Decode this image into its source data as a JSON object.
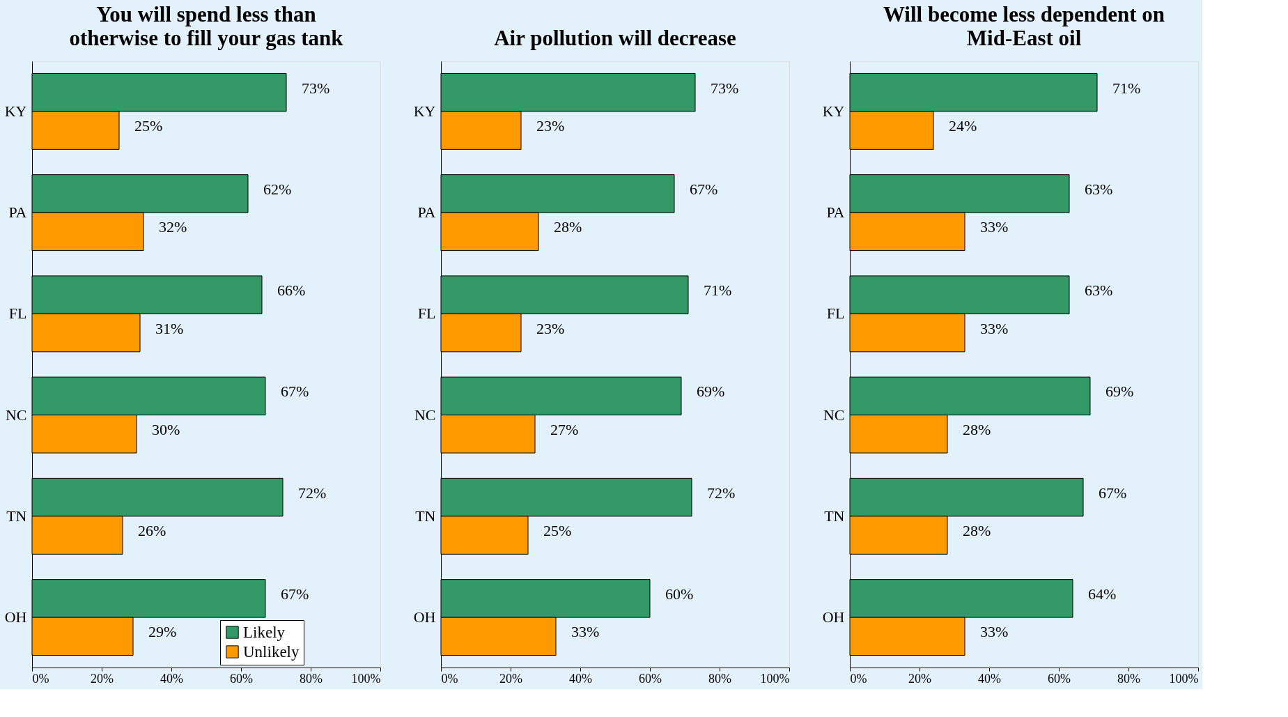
{
  "chart_data": [
    {
      "type": "bar",
      "orientation": "horizontal",
      "title": "You will spend less than otherwise to fill your gas tank",
      "categories": [
        "KY",
        "PA",
        "FL",
        "NC",
        "TN",
        "OH"
      ],
      "series": [
        {
          "name": "Likely",
          "color": "#339966",
          "values": [
            73,
            62,
            66,
            67,
            72,
            67
          ],
          "value_labels": [
            "73%",
            "62%",
            "66%",
            "67%",
            "72%",
            "67%"
          ]
        },
        {
          "name": "Unlikely",
          "color": "#ff9900",
          "values": [
            25,
            32,
            31,
            30,
            26,
            29
          ],
          "value_labels": [
            "25%",
            "32%",
            "31%",
            "30%",
            "26%",
            "29%"
          ]
        }
      ],
      "xlim": [
        0,
        100
      ],
      "xticks": [
        {
          "value": 0,
          "label": "0%"
        },
        {
          "value": 20,
          "label": "20%"
        },
        {
          "value": 40,
          "label": "40%"
        },
        {
          "value": 60,
          "label": "60%"
        },
        {
          "value": 80,
          "label": "80%"
        },
        {
          "value": 100,
          "label": "100%"
        }
      ],
      "grid": false,
      "legend": "bottom right"
    },
    {
      "type": "bar",
      "orientation": "horizontal",
      "title": "Air pollution will decrease",
      "categories": [
        "KY",
        "PA",
        "FL",
        "NC",
        "TN",
        "OH"
      ],
      "series": [
        {
          "color": "#339966",
          "values": [
            73,
            67,
            71,
            69,
            72,
            60
          ],
          "value_labels": [
            "73%",
            "67%",
            "71%",
            "69%",
            "72%",
            "60%"
          ]
        },
        {
          "color": "#ff9900",
          "values": [
            23,
            28,
            23,
            27,
            25,
            33
          ],
          "value_labels": [
            "23%",
            "28%",
            "23%",
            "27%",
            "25%",
            "33%"
          ]
        }
      ],
      "xlim": [
        0,
        100
      ],
      "xticks": [
        {
          "value": 0,
          "label": "0%"
        },
        {
          "value": 20,
          "label": "20%"
        },
        {
          "value": 40,
          "label": "40%"
        },
        {
          "value": 60,
          "label": "60%"
        },
        {
          "value": 80,
          "label": "80%"
        },
        {
          "value": 100,
          "label": "100%"
        }
      ],
      "grid": false
    },
    {
      "type": "bar",
      "orientation": "horizontal",
      "title": "Will become less dependent on Mid-East oil",
      "categories": [
        "KY",
        "PA",
        "FL",
        "NC",
        "TN",
        "OH"
      ],
      "series": [
        {
          "color": "#339966",
          "values": [
            71,
            63,
            63,
            69,
            67,
            64
          ],
          "value_labels": [
            "71%",
            "63%",
            "63%",
            "69%",
            "67%",
            "64%"
          ]
        },
        {
          "color": "#ff9900",
          "values": [
            24,
            33,
            33,
            28,
            28,
            33
          ],
          "value_labels": [
            "24%",
            "33%",
            "33%",
            "28%",
            "28%",
            "33%"
          ]
        }
      ],
      "xlim": [
        0,
        100
      ],
      "xticks": [
        {
          "value": 0,
          "label": "0%"
        },
        {
          "value": 20,
          "label": "20%"
        },
        {
          "value": 40,
          "label": "40%"
        },
        {
          "value": 60,
          "label": "60%"
        },
        {
          "value": 80,
          "label": "80%"
        },
        {
          "value": 100,
          "label": "100%"
        }
      ],
      "grid": false
    }
  ]
}
